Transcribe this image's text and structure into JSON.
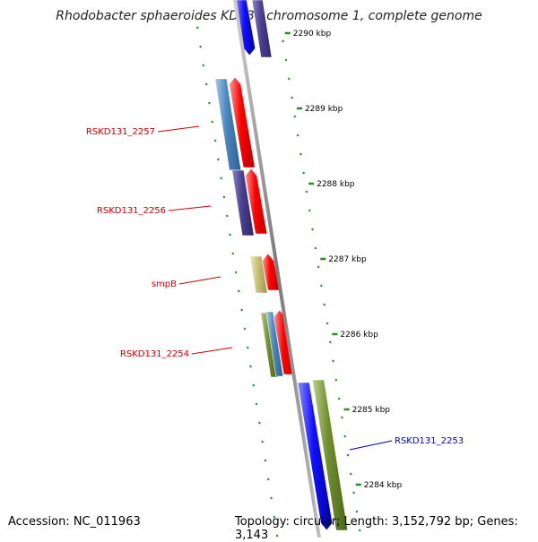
{
  "title": "Rhodobacter sphaeroides KD131 chromosome 1, complete genome",
  "footer": {
    "accession": "Accession: NC_011963",
    "summary": "Topology: circular; Length: 3,152,792 bp; Genes: 3,143"
  },
  "colors": {
    "background": "#ffffff",
    "backbone": "#8a8a8a",
    "ticks": "#2a8a2a",
    "forward_gene": "#ff0000",
    "reverse_gene": "#0000ee",
    "label_red": "#cc0000",
    "label_blue": "#0000cc"
  },
  "ticks": [
    "2290 kbp",
    "2289 kbp",
    "2288 kbp",
    "2287 kbp",
    "2286 kbp",
    "2285 kbp",
    "2284 kbp"
  ],
  "labels": [
    {
      "text": "RSKD131_2257",
      "color": "red"
    },
    {
      "text": "RSKD131_2256",
      "color": "red"
    },
    {
      "text": "smpB",
      "color": "red"
    },
    {
      "text": "RSKD131_2254",
      "color": "red"
    },
    {
      "text": "RSKD131_2253",
      "color": "blue"
    }
  ]
}
